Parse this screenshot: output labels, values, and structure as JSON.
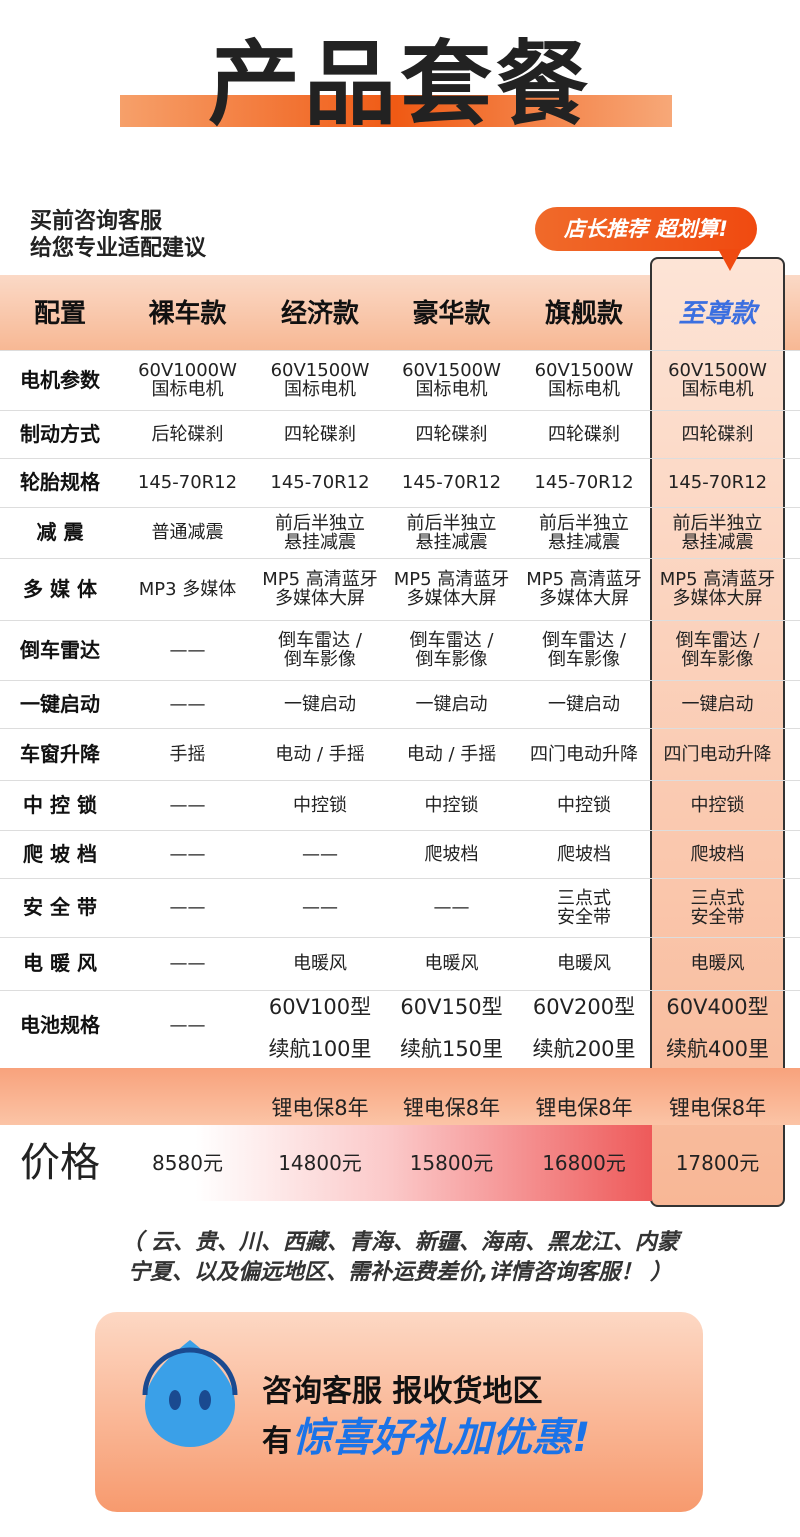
{
  "header": {
    "title": "产品套餐"
  },
  "consult": {
    "lines": [
      "买前咨询客服",
      "给您专业适配建议"
    ]
  },
  "badge": "店长推荐 超划算!",
  "table": {
    "columns": [
      "配置",
      "裸车款",
      "经济款",
      "豪华款",
      "旗舰款",
      "至尊款"
    ],
    "rows": [
      [
        "电机参数",
        [
          "60V1000W",
          "国标电机"
        ],
        [
          "60V1500W",
          "国标电机"
        ],
        [
          "60V1500W",
          "国标电机"
        ],
        [
          "60V1500W",
          "国标电机"
        ],
        [
          "60V1500W",
          "国标电机"
        ]
      ],
      [
        "制动方式",
        "后轮碟刹",
        "四轮碟刹",
        "四轮碟刹",
        "四轮碟刹",
        "四轮碟刹"
      ],
      [
        "轮胎规格",
        "145-70R12",
        "145-70R12",
        "145-70R12",
        "145-70R12",
        "145-70R12"
      ],
      [
        "减  震",
        "普通减震",
        [
          "前后半独立",
          "悬挂减震"
        ],
        [
          "前后半独立",
          "悬挂减震"
        ],
        [
          "前后半独立",
          "悬挂减震"
        ],
        [
          "前后半独立",
          "悬挂减震"
        ]
      ],
      [
        "多 媒 体",
        "MP3 多媒体",
        [
          "MP5 高清蓝牙",
          "多媒体大屏"
        ],
        [
          "MP5 高清蓝牙",
          "多媒体大屏"
        ],
        [
          "MP5 高清蓝牙",
          "多媒体大屏"
        ],
        [
          "MP5 高清蓝牙",
          "多媒体大屏"
        ]
      ],
      [
        "倒车雷达",
        "——",
        [
          "倒车雷达 /",
          "倒车影像"
        ],
        [
          "倒车雷达 /",
          "倒车影像"
        ],
        [
          "倒车雷达 /",
          "倒车影像"
        ],
        [
          "倒车雷达 /",
          "倒车影像"
        ]
      ],
      [
        "一键启动",
        "——",
        "一键启动",
        "一键启动",
        "一键启动",
        "一键启动"
      ],
      [
        "车窗升降",
        "手摇",
        "电动 / 手摇",
        "电动 / 手摇",
        "四门电动升降",
        "四门电动升降"
      ],
      [
        "中 控 锁",
        "——",
        "中控锁",
        "中控锁",
        "中控锁",
        "中控锁"
      ],
      [
        "爬 坡 档",
        "——",
        "——",
        "爬坡档",
        "爬坡档",
        "爬坡档"
      ],
      [
        "安 全 带",
        "——",
        "——",
        "——",
        [
          "三点式",
          "安全带"
        ],
        [
          "三点式",
          "安全带"
        ]
      ],
      [
        "电 暖 风",
        "——",
        "电暖风",
        "电暖风",
        "电暖风",
        "电暖风"
      ],
      [
        "电池规格",
        "——",
        [
          "60V100型",
          "续航100里",
          "锂电保8年"
        ],
        [
          "60V150型",
          "续航150里",
          "锂电保8年"
        ],
        [
          "60V200型",
          "续航200里",
          "锂电保8年"
        ],
        [
          "60V400型",
          "续航400里",
          "锂电保8年"
        ]
      ]
    ],
    "price": [
      "价格",
      "8580元",
      "14800元",
      "15800元",
      "16800元",
      "17800元"
    ]
  },
  "note": {
    "lines": [
      "（ 云、贵、川、西藏、青海、新疆、海南、黑龙江、内蒙",
      "宁夏、以及偏远地区、需补运费差价,详情咨询客服！ ）"
    ]
  },
  "cta": {
    "line1": "咨询客服 报收货地区",
    "prefix": "有",
    "highlight": "惊喜好礼加优惠!"
  }
}
